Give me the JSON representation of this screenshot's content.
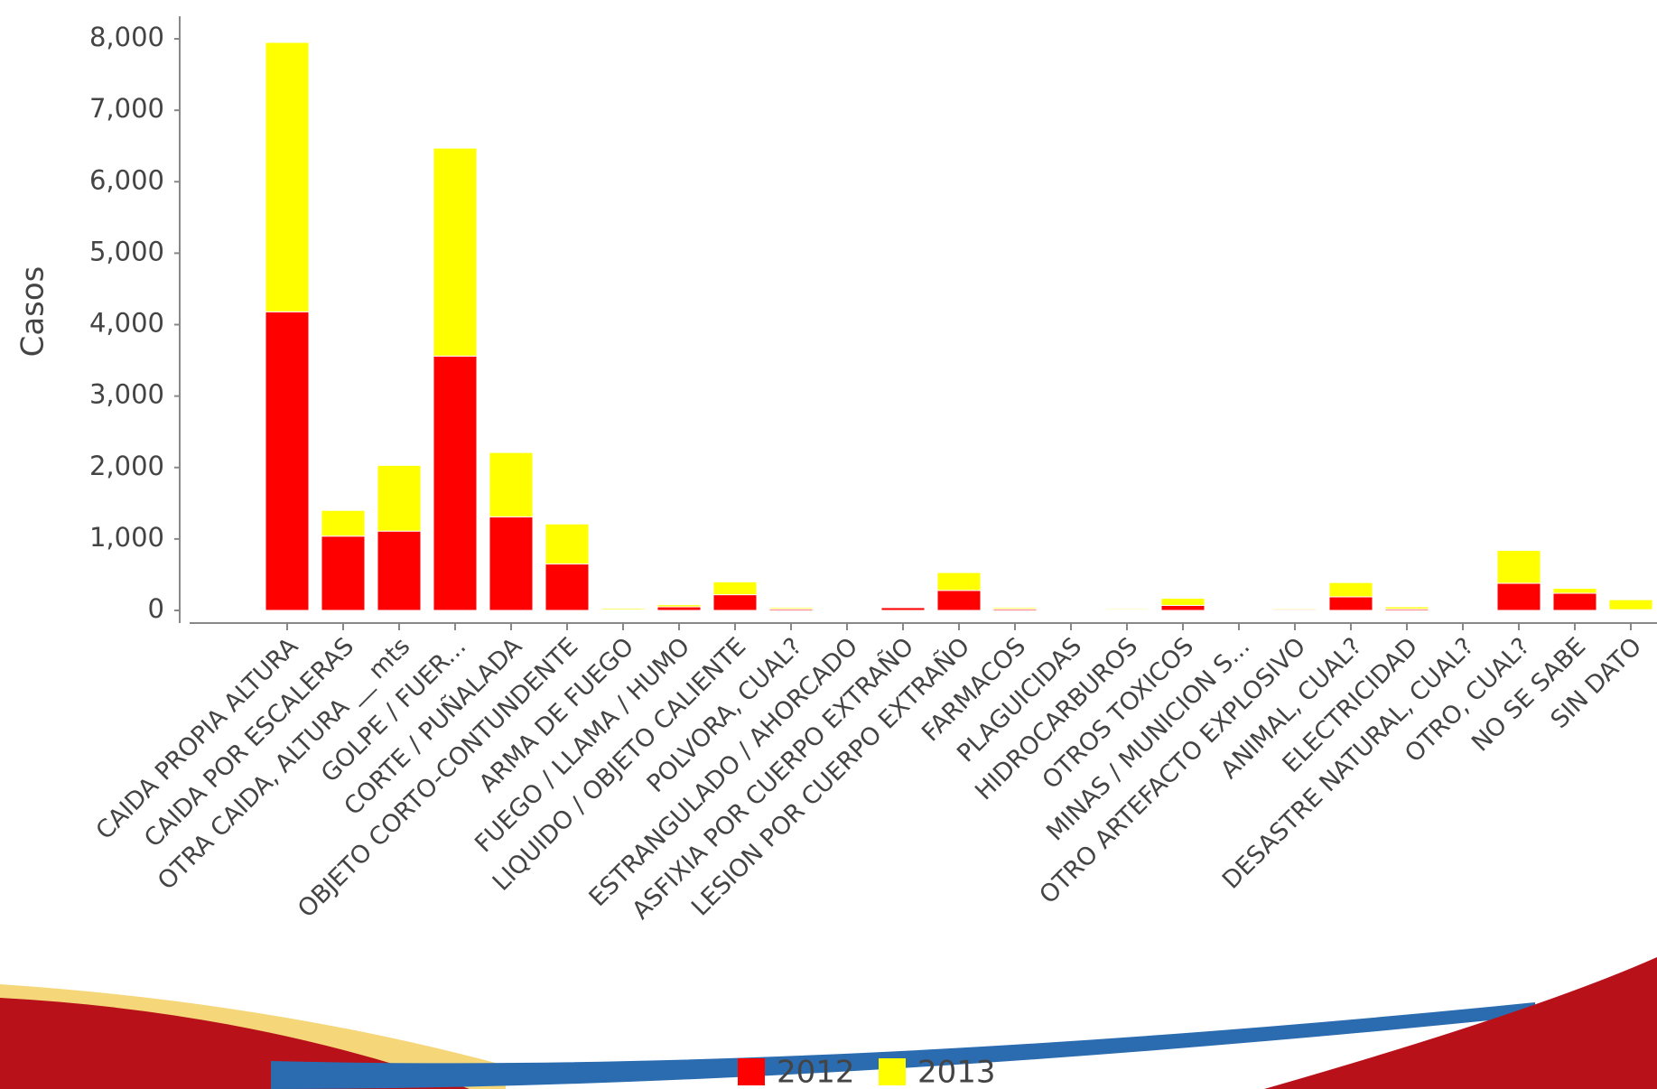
{
  "chart_data": {
    "type": "stacked_bar",
    "ylabel": "Casos",
    "categories": [
      "CAIDA PROPIA ALTURA",
      "CAIDA POR ESCALERAS",
      "OTRA CAIDA, ALTURA __ mts",
      "GOLPE / FUER...",
      "CORTE / PUÑALADA",
      "OBJETO CORTO-CONTUNDENTE",
      "ARMA DE FUEGO",
      "FUEGO / LLAMA / HUMO",
      "LIQUIDO / OBJETO CALIENTE",
      "POLVORA, CUAL?",
      "ESTRANGULADO / AHORCADO",
      "ASFIXIA POR CUERPO EXTRAÑO",
      "LESION POR CUERPO EXTRAÑO",
      "FARMACOS",
      "PLAGUICIDAS",
      "HIDROCARBUROS",
      "OTROS TOXICOS",
      "MINAS / MUNICION S...",
      "OTRO ARTEFACTO EXPLOSIVO",
      "ANIMAL, CUAL?",
      "ELECTRICIDAD",
      "DESASTRE NATURAL, CUAL?",
      "OTRO, CUAL?",
      "NO SE SABE",
      "SIN DATO"
    ],
    "series": [
      {
        "name": "2012",
        "color": "#ff0000",
        "values": [
          4180,
          1040,
          1110,
          3560,
          1310,
          650,
          10,
          50,
          220,
          20,
          5,
          40,
          280,
          20,
          10,
          10,
          70,
          0,
          15,
          190,
          20,
          10,
          380,
          240,
          10
        ]
      },
      {
        "name": "2013",
        "color": "#ffff00",
        "values": [
          3770,
          360,
          920,
          2910,
          900,
          560,
          20,
          30,
          180,
          20,
          5,
          10,
          250,
          20,
          10,
          15,
          100,
          0,
          15,
          200,
          30,
          10,
          460,
          70,
          140
        ]
      }
    ],
    "ylim": [
      0,
      8300
    ],
    "yticks": [
      {
        "value": 0,
        "label": "0"
      },
      {
        "value": 1000,
        "label": "1,000"
      },
      {
        "value": 2000,
        "label": "2,000"
      },
      {
        "value": 3000,
        "label": "3,000"
      },
      {
        "value": 4000,
        "label": "4,000"
      },
      {
        "value": 5000,
        "label": "5,000"
      },
      {
        "value": 6000,
        "label": "6,000"
      },
      {
        "value": 7000,
        "label": "7,000"
      },
      {
        "value": 8000,
        "label": "8,000"
      }
    ]
  }
}
